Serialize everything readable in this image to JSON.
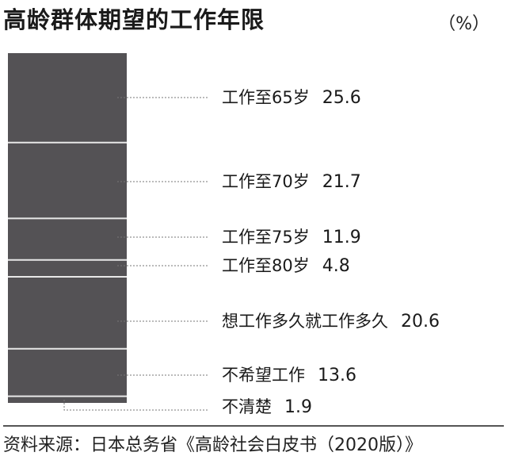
{
  "title": "高龄群体期望的工作年限",
  "unit": "（%）",
  "source": "资料来源：日本总务省《高龄社会白皮书（2020版）》",
  "chart_data": {
    "type": "bar",
    "stacked": true,
    "title": "高龄群体期望的工作年限",
    "categories": [
      "工作至65岁",
      "工作至70岁",
      "工作至75岁",
      "工作至80岁",
      "想工作多久就工作多久",
      "不希望工作",
      "不清楚"
    ],
    "values": [
      25.6,
      21.7,
      11.9,
      4.8,
      20.6,
      13.6,
      1.9
    ],
    "value_labels": [
      "25.6",
      "21.7",
      "11.9",
      "4.8",
      "20.6",
      "13.6",
      "1.9"
    ],
    "bar_color": "#545255",
    "divider_color": "#e8e8e8"
  }
}
